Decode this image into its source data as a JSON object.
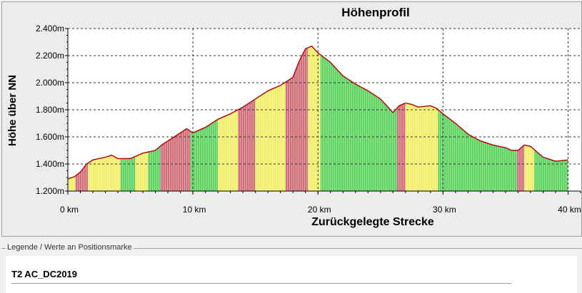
{
  "chart_data": {
    "type": "area",
    "title": "Höhenprofil",
    "xlabel": "Zurückgelegte Strecke",
    "ylabel": "Höhe über NN",
    "xlim": [
      0,
      41
    ],
    "ylim": [
      1200,
      2400
    ],
    "x_ticks": [
      0,
      10,
      20,
      30,
      40
    ],
    "x_tick_labels": [
      "0 km",
      "10 km",
      "20 km",
      "30 km",
      "40 km"
    ],
    "y_ticks": [
      1200,
      1400,
      1600,
      1800,
      2000,
      2200,
      2400
    ],
    "y_tick_labels": [
      "1.200m",
      "1.400m",
      "1.600m",
      "1.800m",
      "2.000m",
      "2.200m",
      "2.400m"
    ],
    "grid": true,
    "x": [
      0,
      0.5,
      1,
      1.5,
      2,
      3,
      3.5,
      4,
      5,
      5.5,
      6,
      7,
      7.5,
      8,
      8.5,
      9,
      9.5,
      10,
      11,
      12,
      13,
      14,
      15,
      16,
      17,
      18,
      18.5,
      19,
      19.5,
      20,
      21,
      22,
      23,
      24,
      25,
      26,
      26.5,
      27,
      27.5,
      28,
      29,
      29.5,
      30,
      31,
      32,
      33,
      34,
      35,
      35.5,
      36,
      36.5,
      37,
      38,
      39,
      40
    ],
    "y": [
      1290,
      1305,
      1340,
      1400,
      1430,
      1450,
      1465,
      1440,
      1440,
      1460,
      1480,
      1500,
      1540,
      1570,
      1600,
      1630,
      1660,
      1630,
      1670,
      1730,
      1770,
      1820,
      1880,
      1940,
      1980,
      2040,
      2160,
      2250,
      2270,
      2220,
      2150,
      2050,
      1990,
      1940,
      1880,
      1780,
      1830,
      1850,
      1840,
      1820,
      1830,
      1810,
      1770,
      1700,
      1620,
      1570,
      1540,
      1520,
      1500,
      1500,
      1540,
      1530,
      1450,
      1420,
      1430
    ],
    "segments": [
      {
        "from": 0,
        "to": 0.6,
        "grade": "yellow"
      },
      {
        "from": 0.6,
        "to": 1.6,
        "grade": "red"
      },
      {
        "from": 1.6,
        "to": 2.4,
        "grade": "yellow"
      },
      {
        "from": 2.4,
        "to": 4.2,
        "grade": "yellow"
      },
      {
        "from": 4.2,
        "to": 5.4,
        "grade": "green"
      },
      {
        "from": 5.4,
        "to": 6.4,
        "grade": "yellow"
      },
      {
        "from": 6.4,
        "to": 7.4,
        "grade": "green"
      },
      {
        "from": 7.4,
        "to": 9.8,
        "grade": "red"
      },
      {
        "from": 9.8,
        "to": 10.2,
        "grade": "green"
      },
      {
        "from": 10.2,
        "to": 12.0,
        "grade": "green"
      },
      {
        "from": 12.0,
        "to": 13.6,
        "grade": "yellow"
      },
      {
        "from": 13.6,
        "to": 15.0,
        "grade": "red"
      },
      {
        "from": 15.0,
        "to": 17.4,
        "grade": "yellow"
      },
      {
        "from": 17.4,
        "to": 19.2,
        "grade": "red"
      },
      {
        "from": 19.2,
        "to": 20.2,
        "grade": "yellow"
      },
      {
        "from": 20.2,
        "to": 26.3,
        "grade": "green"
      },
      {
        "from": 26.3,
        "to": 27.0,
        "grade": "red"
      },
      {
        "from": 27.0,
        "to": 29.6,
        "grade": "yellow"
      },
      {
        "from": 29.6,
        "to": 35.9,
        "grade": "green"
      },
      {
        "from": 35.9,
        "to": 36.5,
        "grade": "red"
      },
      {
        "from": 36.5,
        "to": 37.3,
        "grade": "yellow"
      },
      {
        "from": 37.3,
        "to": 40.0,
        "grade": "green"
      }
    ],
    "colors": {
      "green": "#5fd35f",
      "yellow": "#f2ee6a",
      "red": "#d0707a",
      "outline": "#b00000",
      "grid": "#333333"
    }
  },
  "legend": {
    "label": "Legende / Werte an Positionsmarke",
    "track_name": "T2 AC_DC2019"
  }
}
